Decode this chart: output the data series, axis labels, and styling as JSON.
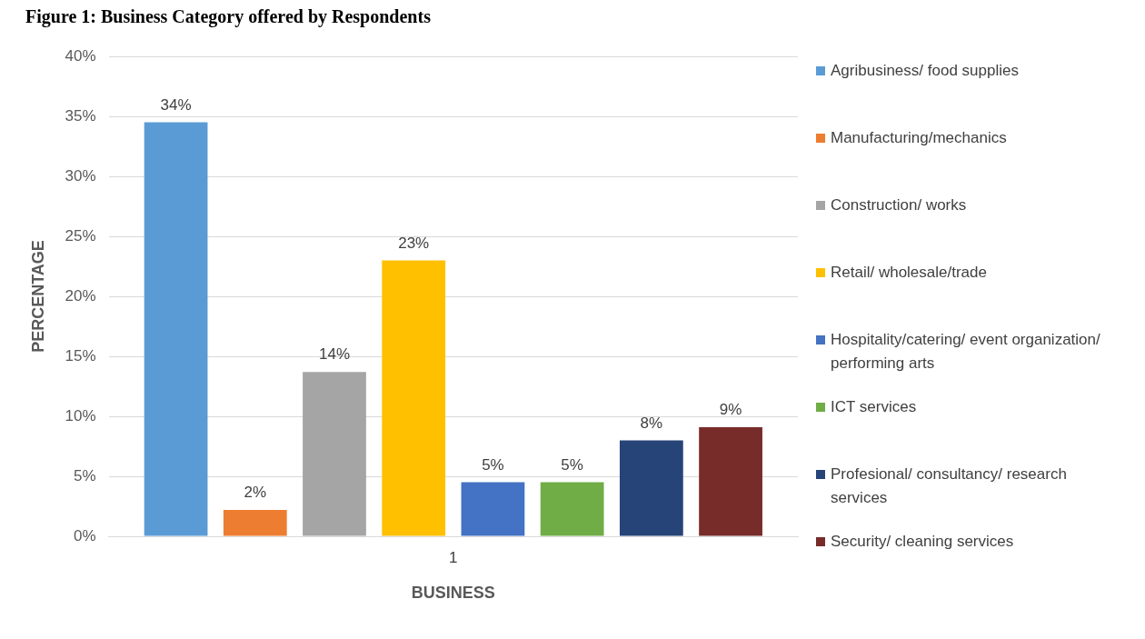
{
  "chart_data": {
    "type": "bar",
    "title": "Figure 1: Business Category offered by Respondents",
    "xlabel": "BUSINESS",
    "ylabel": "PERCENTAGE",
    "categories": [
      "1"
    ],
    "series": [
      {
        "name": "Agribusiness/  food supplies",
        "color": "#5b9bd5",
        "values": [
          34.5
        ],
        "value_labels": [
          "34%"
        ]
      },
      {
        "name": "Manufacturing/mechanics",
        "color": "#ed7d31",
        "values": [
          2.2
        ],
        "value_labels": [
          "2%"
        ]
      },
      {
        "name": "Construction/ works",
        "color": "#a5a5a5",
        "values": [
          13.7
        ],
        "value_labels": [
          "14%"
        ]
      },
      {
        "name": "Retail/ wholesale/trade",
        "color": "#ffc000",
        "values": [
          23.0
        ],
        "value_labels": [
          "23%"
        ]
      },
      {
        "name": "Hospitality/catering/ event organization/ performing arts",
        "color": "#4472c4",
        "values": [
          4.5
        ],
        "value_labels": [
          "5%"
        ]
      },
      {
        "name": "ICT services",
        "color": "#70ad47",
        "values": [
          4.5
        ],
        "value_labels": [
          "5%"
        ]
      },
      {
        "name": "Profesional/ consultancy/ research services",
        "color": "#264478",
        "values": [
          8.0
        ],
        "value_labels": [
          "8%"
        ]
      },
      {
        "name": "Security/ cleaning services",
        "color": "#772c2a",
        "values": [
          9.1
        ],
        "value_labels": [
          "9%"
        ]
      }
    ],
    "ylim": [
      0,
      40
    ],
    "yticks": [
      {
        "value": 0,
        "label": "0%"
      },
      {
        "value": 5,
        "label": "5%"
      },
      {
        "value": 10,
        "label": "10%"
      },
      {
        "value": 15,
        "label": "15%"
      },
      {
        "value": 20,
        "label": "20%"
      },
      {
        "value": 25,
        "label": "25%"
      },
      {
        "value": 30,
        "label": "30%"
      },
      {
        "value": 35,
        "label": "35%"
      },
      {
        "value": 40,
        "label": "40%"
      }
    ],
    "grid": "y",
    "legend": "right"
  }
}
